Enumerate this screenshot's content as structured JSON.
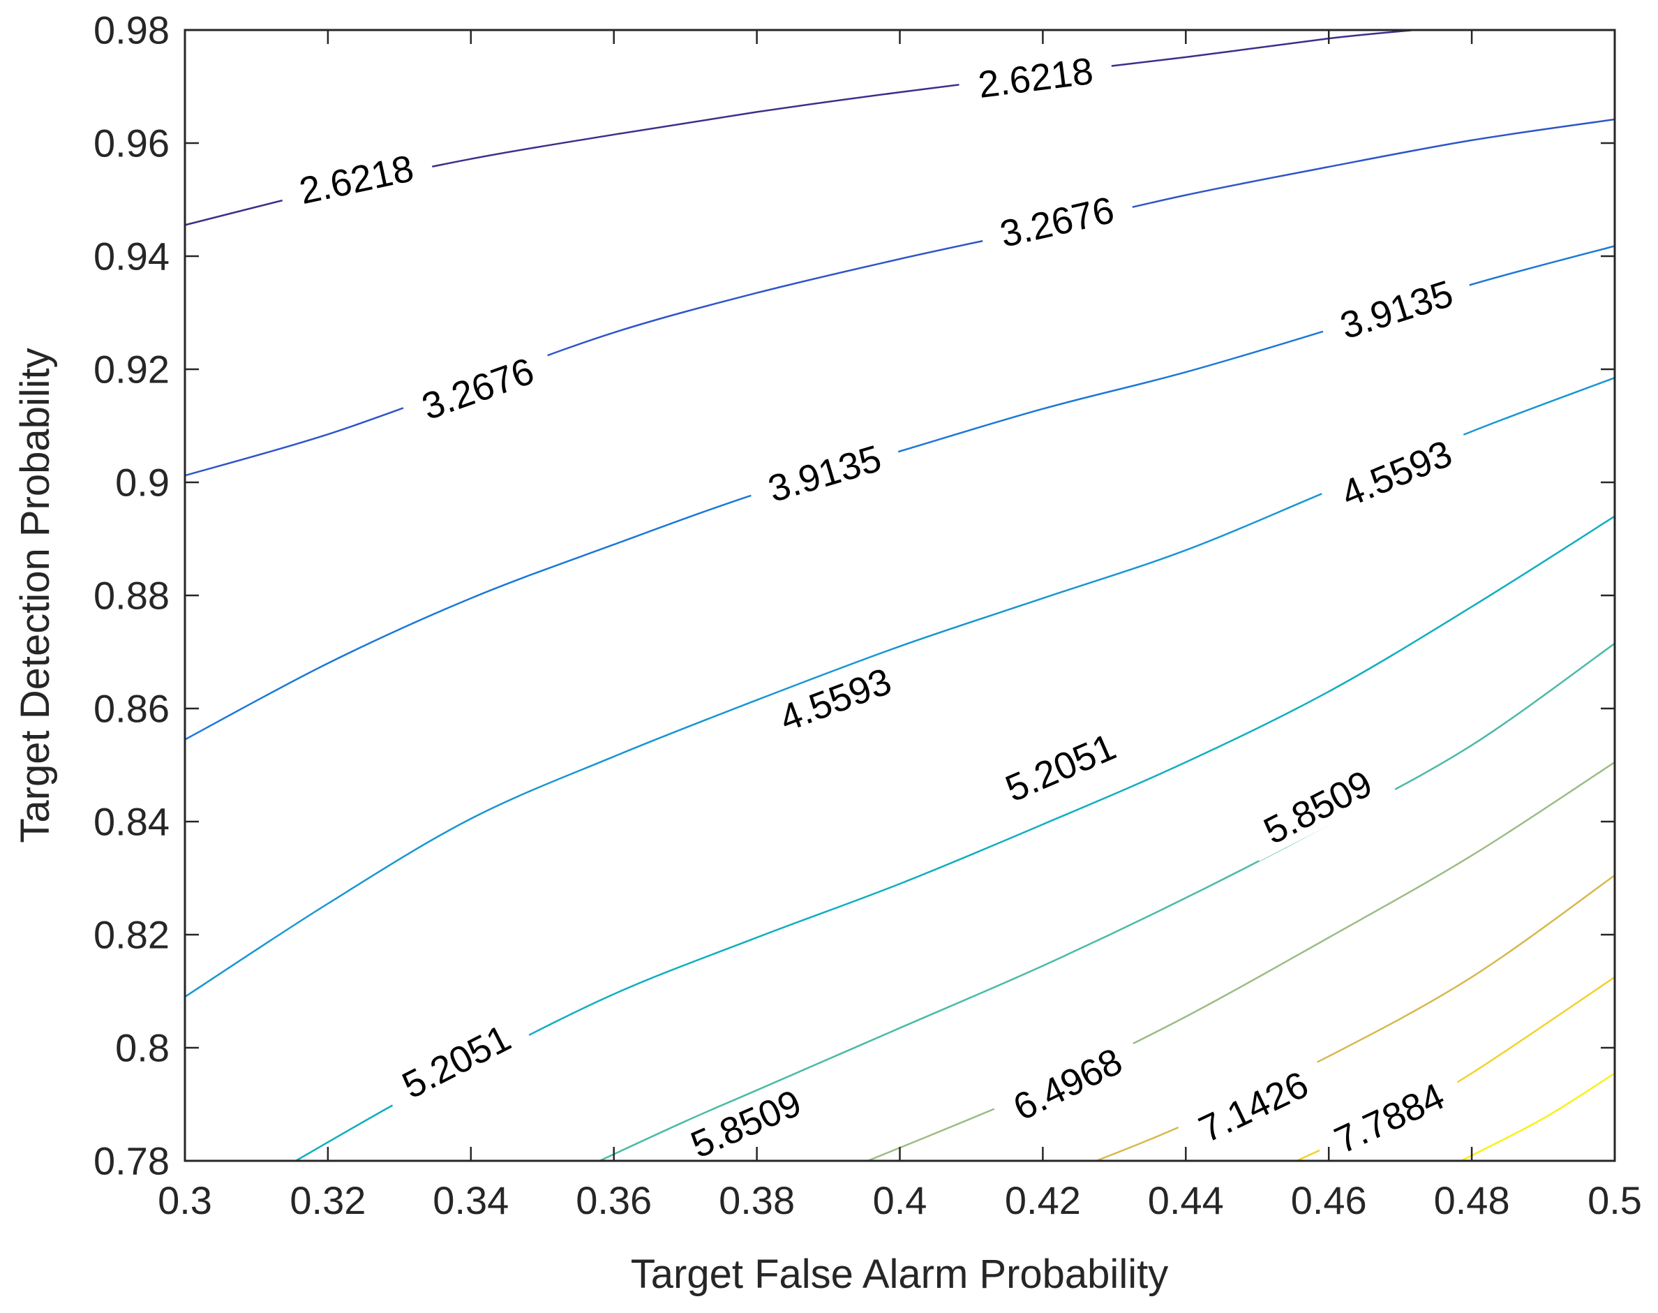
{
  "chart_data": {
    "type": "contour",
    "title": "",
    "xlabel": "Target False Alarm Probability",
    "ylabel": "Target Detection Probability",
    "xlim": [
      0.3,
      0.5
    ],
    "ylim": [
      0.78,
      0.98
    ],
    "xticks": [
      0.3,
      0.32,
      0.34,
      0.36,
      0.38,
      0.4,
      0.42,
      0.44,
      0.46,
      0.48,
      0.5
    ],
    "xtick_labels": [
      "0.3",
      "0.32",
      "0.34",
      "0.36",
      "0.38",
      "0.4",
      "0.42",
      "0.44",
      "0.46",
      "0.48",
      "0.5"
    ],
    "yticks": [
      0.78,
      0.8,
      0.82,
      0.84,
      0.86,
      0.88,
      0.9,
      0.92,
      0.94,
      0.96,
      0.98
    ],
    "ytick_labels": [
      "0.78",
      "0.8",
      "0.82",
      "0.84",
      "0.86",
      "0.88",
      "0.9",
      "0.92",
      "0.94",
      "0.96",
      "0.98"
    ],
    "grid": false,
    "colormap": "parula",
    "levels": [
      {
        "level": "2.6218",
        "color": "#3b2f8a",
        "points": [
          [
            0.3,
            0.9455
          ],
          [
            0.32,
            0.9518
          ],
          [
            0.34,
            0.9572
          ],
          [
            0.36,
            0.9615
          ],
          [
            0.38,
            0.9655
          ],
          [
            0.4,
            0.969
          ],
          [
            0.42,
            0.9722
          ],
          [
            0.44,
            0.9752
          ],
          [
            0.46,
            0.9785
          ],
          [
            0.472,
            0.98
          ]
        ],
        "labels": [
          {
            "text": "2.6218",
            "at": [
              0.324,
              0.9535
            ]
          },
          {
            "text": "2.6218",
            "at": [
              0.419,
              0.9715
            ]
          }
        ]
      },
      {
        "level": "3.2676",
        "color": "#2f55c8",
        "points": [
          [
            0.3,
            0.9012
          ],
          [
            0.32,
            0.9085
          ],
          [
            0.34,
            0.9175
          ],
          [
            0.36,
            0.9265
          ],
          [
            0.38,
            0.9335
          ],
          [
            0.4,
            0.9395
          ],
          [
            0.42,
            0.945
          ],
          [
            0.44,
            0.9508
          ],
          [
            0.46,
            0.9558
          ],
          [
            0.48,
            0.9605
          ],
          [
            0.5,
            0.9642
          ]
        ],
        "labels": [
          {
            "text": "3.2676",
            "at": [
              0.341,
              0.9165
            ]
          },
          {
            "text": "3.2676",
            "at": [
              0.422,
              0.946
            ]
          }
        ]
      },
      {
        "level": "3.9135",
        "color": "#1b78d8",
        "points": [
          [
            0.3,
            0.8545
          ],
          [
            0.32,
            0.868
          ],
          [
            0.34,
            0.8795
          ],
          [
            0.36,
            0.889
          ],
          [
            0.38,
            0.898
          ],
          [
            0.4,
            0.9055
          ],
          [
            0.42,
            0.913
          ],
          [
            0.44,
            0.9195
          ],
          [
            0.46,
            0.927
          ],
          [
            0.48,
            0.935
          ],
          [
            0.5,
            0.9418
          ]
        ],
        "labels": [
          {
            "text": "3.9135",
            "at": [
              0.3895,
              0.9015
            ]
          },
          {
            "text": "3.9135",
            "at": [
              0.4695,
              0.9305
            ]
          }
        ]
      },
      {
        "level": "4.5593",
        "color": "#1896d2",
        "points": [
          [
            0.3,
            0.809
          ],
          [
            0.32,
            0.8255
          ],
          [
            0.34,
            0.8405
          ],
          [
            0.36,
            0.8515
          ],
          [
            0.38,
            0.8615
          ],
          [
            0.4,
            0.871
          ],
          [
            0.42,
            0.8795
          ],
          [
            0.44,
            0.888
          ],
          [
            0.46,
            0.8985
          ],
          [
            0.48,
            0.909
          ],
          [
            0.5,
            0.9185
          ]
        ],
        "labels": [
          {
            "text": "4.5593",
            "at": [
              0.391,
              0.8615
            ]
          },
          {
            "text": "4.5593",
            "at": [
              0.4695,
              0.9015
            ]
          }
        ]
      },
      {
        "level": "5.2051",
        "color": "#10aebf",
        "points": [
          [
            0.3155,
            0.78
          ],
          [
            0.33,
            0.7905
          ],
          [
            0.34,
            0.797
          ],
          [
            0.36,
            0.8095
          ],
          [
            0.38,
            0.8195
          ],
          [
            0.4,
            0.829
          ],
          [
            0.42,
            0.8395
          ],
          [
            0.44,
            0.8505
          ],
          [
            0.46,
            0.863
          ],
          [
            0.48,
            0.878
          ],
          [
            0.5,
            0.894
          ]
        ],
        "labels": [
          {
            "text": "5.2051",
            "at": [
              0.338,
              0.7975
            ]
          },
          {
            "text": "5.2051",
            "at": [
              0.4225,
              0.8495
            ]
          }
        ]
      },
      {
        "level": "5.8509",
        "color": "#4bbaa6",
        "points": [
          [
            0.358,
            0.78
          ],
          [
            0.37,
            0.787
          ],
          [
            0.38,
            0.7925
          ],
          [
            0.4,
            0.8035
          ],
          [
            0.42,
            0.8145
          ],
          [
            0.44,
            0.8265
          ],
          [
            0.46,
            0.8395
          ],
          [
            0.48,
            0.8535
          ],
          [
            0.5,
            0.8715
          ]
        ],
        "labels": [
          {
            "text": "5.8509",
            "at": [
              0.3785,
              0.7865
            ]
          },
          {
            "text": "5.8509",
            "at": [
              0.4585,
              0.8425
            ]
          }
        ]
      },
      {
        "level": "6.4968",
        "color": "#9dbc84",
        "points": [
          [
            0.3955,
            0.78
          ],
          [
            0.41,
            0.7875
          ],
          [
            0.42,
            0.793
          ],
          [
            0.44,
            0.8055
          ],
          [
            0.46,
            0.8195
          ],
          [
            0.48,
            0.834
          ],
          [
            0.5,
            0.8505
          ]
        ],
        "labels": [
          {
            "text": "6.4968",
            "at": [
              0.4235,
              0.7935
            ]
          }
        ]
      },
      {
        "level": "7.1426",
        "color": "#d7b84b",
        "points": [
          [
            0.4275,
            0.78
          ],
          [
            0.44,
            0.7865
          ],
          [
            0.46,
            0.7985
          ],
          [
            0.48,
            0.8125
          ],
          [
            0.5,
            0.8305
          ]
        ],
        "labels": [
          {
            "text": "7.1426",
            "at": [
              0.4495,
              0.7895
            ]
          }
        ]
      },
      {
        "level": "7.7884",
        "color": "#f1d22b",
        "points": [
          [
            0.4555,
            0.78
          ],
          [
            0.47,
            0.7885
          ],
          [
            0.48,
            0.7955
          ],
          [
            0.5,
            0.8125
          ]
        ],
        "labels": [
          {
            "text": "7.7884",
            "at": [
              0.4685,
              0.7875
            ]
          }
        ]
      },
      {
        "level": "",
        "color": "#f9f11a",
        "points": [
          [
            0.4785,
            0.78
          ],
          [
            0.49,
            0.7875
          ],
          [
            0.5,
            0.7955
          ]
        ],
        "labels": []
      }
    ]
  }
}
